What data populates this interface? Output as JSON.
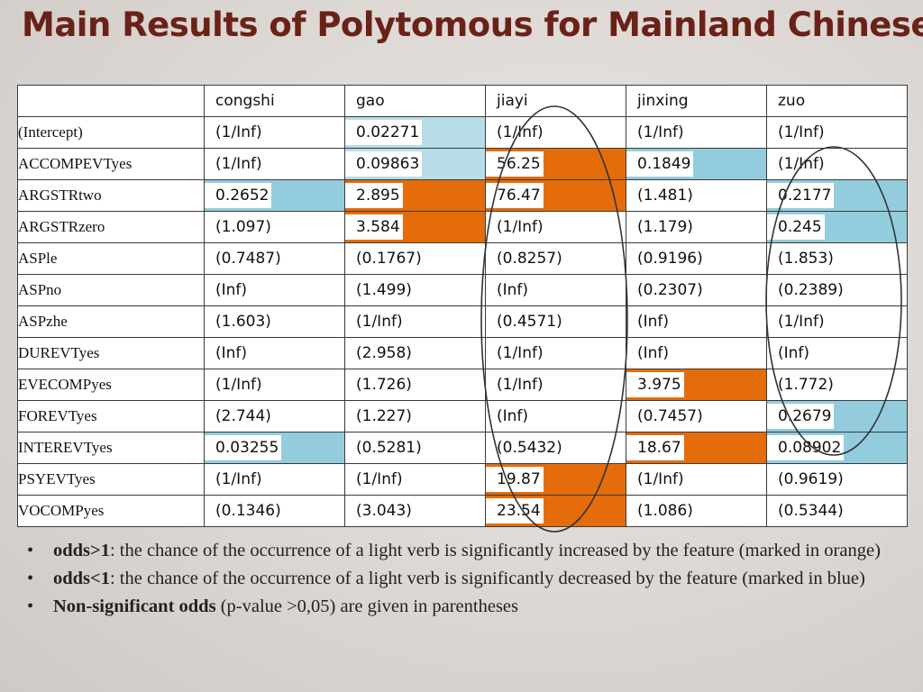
{
  "slide": {
    "title": "Main Results of Polytomous for Mainland Chinese"
  },
  "colors": {
    "orange_significant": "#e46c0a",
    "blue_significant": "#93cddd",
    "title": "#6a2218"
  },
  "table": {
    "header_blank": "",
    "columns": [
      "congshi",
      "gao",
      "jiayi",
      "jinxing",
      "zuo"
    ],
    "rows": [
      {
        "label": "(Intercept)",
        "values": [
          "(1/Inf)",
          "0.02271",
          "(1/Inf)",
          "(1/Inf)",
          "(1/Inf)"
        ],
        "marks": [
          "",
          "blue-light",
          "",
          "",
          ""
        ]
      },
      {
        "label": "ACCOMPEVTyes",
        "values": [
          "(1/Inf)",
          "0.09863",
          "56.25",
          "0.1849",
          "(1/Inf)"
        ],
        "marks": [
          "",
          "blue-light",
          "orange",
          "blue",
          ""
        ]
      },
      {
        "label": "ARGSTRtwo",
        "values": [
          "0.2652",
          "2.895",
          "76.47",
          "(1.481)",
          "0.2177"
        ],
        "marks": [
          "blue",
          "orange",
          "orange",
          "",
          "blue"
        ]
      },
      {
        "label": "ARGSTRzero",
        "values": [
          "(1.097)",
          "3.584",
          "(1/Inf)",
          "(1.179)",
          "0.245"
        ],
        "marks": [
          "",
          "orange",
          "",
          "",
          "blue"
        ]
      },
      {
        "label": "ASPle",
        "values": [
          "(0.7487)",
          "(0.1767)",
          "(0.8257)",
          "(0.9196)",
          "(1.853)"
        ],
        "marks": [
          "",
          "",
          "",
          "",
          ""
        ]
      },
      {
        "label": "ASPno",
        "values": [
          "(Inf)",
          "(1.499)",
          "(Inf)",
          "(0.2307)",
          "(0.2389)"
        ],
        "marks": [
          "",
          "",
          "",
          "",
          ""
        ]
      },
      {
        "label": "ASPzhe",
        "values": [
          "(1.603)",
          "(1/Inf)",
          "(0.4571)",
          "(Inf)",
          "(1/Inf)"
        ],
        "marks": [
          "",
          "",
          "",
          "",
          ""
        ]
      },
      {
        "label": "DUREVTyes",
        "values": [
          "(Inf)",
          "(2.958)",
          "(1/Inf)",
          "(Inf)",
          "(Inf)"
        ],
        "marks": [
          "",
          "",
          "",
          "",
          ""
        ]
      },
      {
        "label": "EVECOMPyes",
        "values": [
          "(1/Inf)",
          "(1.726)",
          "(1/Inf)",
          "3.975",
          "(1.772)"
        ],
        "marks": [
          "",
          "",
          "",
          "orange",
          ""
        ]
      },
      {
        "label": "FOREVTyes",
        "values": [
          "(2.744)",
          "(1.227)",
          "(Inf)",
          "(0.7457)",
          "0.2679"
        ],
        "marks": [
          "",
          "",
          "",
          "",
          "blue"
        ]
      },
      {
        "label": "INTEREVTyes",
        "values": [
          "0.03255",
          "(0.5281)",
          "(0.5432)",
          "18.67",
          "0.08902"
        ],
        "marks": [
          "blue",
          "",
          "",
          "orange",
          "blue"
        ]
      },
      {
        "label": "PSYEVTyes",
        "values": [
          "(1/Inf)",
          "(1/Inf)",
          "19.87",
          "(1/Inf)",
          "(0.9619)"
        ],
        "marks": [
          "",
          "",
          "orange",
          "",
          ""
        ]
      },
      {
        "label": "VOCOMPyes",
        "values": [
          "(0.1346)",
          "(3.043)",
          "23.54",
          "(1.086)",
          "(0.5344)"
        ],
        "marks": [
          "",
          "",
          "orange",
          "",
          ""
        ]
      }
    ]
  },
  "notes": [
    {
      "bullet": "•",
      "bold": "odds>1",
      "text": ": the chance of the occurrence of a light verb is significantly increased by the feature (marked in orange)"
    },
    {
      "bullet": "•",
      "bold": "odds<1",
      "text": ": the chance of the occurrence of a light verb is significantly decreased by the feature (marked in blue)"
    },
    {
      "bullet": "•",
      "bold": "Non-significant odds",
      "text": " (p-value >0,05) are given in parentheses"
    }
  ]
}
